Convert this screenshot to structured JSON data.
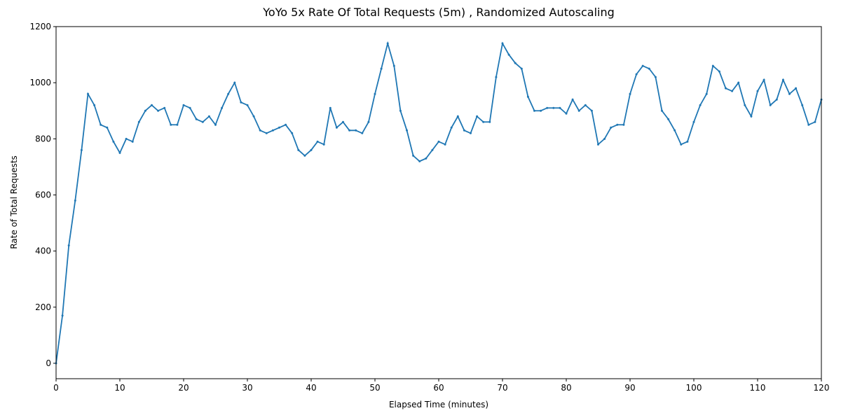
{
  "chart_data": {
    "type": "line",
    "title": "YoYo 5x Rate Of Total Requests (5m) , Randomized Autoscaling",
    "x_label": "Elapsed Time (minutes)",
    "y_label": "Rate of Total Requests",
    "xlim": [
      0,
      120
    ],
    "ylim": [
      -55,
      1200
    ],
    "xticks": [
      0,
      10,
      20,
      30,
      40,
      50,
      60,
      70,
      80,
      90,
      100,
      110,
      120
    ],
    "yticks": [
      0,
      200,
      400,
      600,
      800,
      1000,
      1200
    ],
    "grid": false,
    "x": [
      0,
      1,
      2,
      3,
      4,
      5,
      6,
      7,
      8,
      9,
      10,
      11,
      12,
      13,
      14,
      15,
      16,
      17,
      18,
      19,
      20,
      21,
      22,
      23,
      24,
      25,
      26,
      27,
      28,
      29,
      30,
      31,
      32,
      33,
      34,
      35,
      36,
      37,
      38,
      39,
      40,
      41,
      42,
      43,
      44,
      45,
      46,
      47,
      48,
      49,
      50,
      51,
      52,
      53,
      54,
      55,
      56,
      57,
      58,
      59,
      60,
      61,
      62,
      63,
      64,
      65,
      66,
      67,
      68,
      69,
      70,
      71,
      72,
      73,
      74,
      75,
      76,
      77,
      78,
      79,
      80,
      81,
      82,
      83,
      84,
      85,
      86,
      87,
      88,
      89,
      90,
      91,
      92,
      93,
      94,
      95,
      96,
      97,
      98,
      99,
      100,
      101,
      102,
      103,
      104,
      105,
      106,
      107,
      108,
      109,
      110,
      111,
      112,
      113,
      114,
      115,
      116,
      117,
      118,
      119,
      120
    ],
    "series": [
      {
        "name": "Rate of Total Requests",
        "color": "#1f77b4",
        "values": [
          0,
          170,
          420,
          580,
          760,
          960,
          920,
          850,
          840,
          790,
          750,
          800,
          790,
          860,
          900,
          920,
          900,
          910,
          850,
          850,
          920,
          910,
          870,
          860,
          880,
          850,
          910,
          960,
          1000,
          930,
          920,
          880,
          830,
          820,
          830,
          840,
          850,
          820,
          760,
          740,
          760,
          790,
          780,
          910,
          840,
          860,
          830,
          830,
          820,
          860,
          960,
          1050,
          1140,
          1060,
          900,
          830,
          740,
          720,
          730,
          760,
          790,
          780,
          840,
          880,
          830,
          820,
          880,
          860,
          860,
          1020,
          1140,
          1100,
          1070,
          1050,
          950,
          900,
          900,
          910,
          910,
          910,
          890,
          940,
          900,
          920,
          900,
          780,
          800,
          840,
          850,
          850,
          960,
          1030,
          1060,
          1050,
          1020,
          900,
          870,
          830,
          780,
          790,
          860,
          920,
          960,
          1060,
          1040,
          980,
          970,
          1000,
          920,
          880,
          970,
          1010,
          920,
          940,
          1010,
          960,
          980,
          920,
          850,
          860,
          940
        ]
      }
    ]
  }
}
